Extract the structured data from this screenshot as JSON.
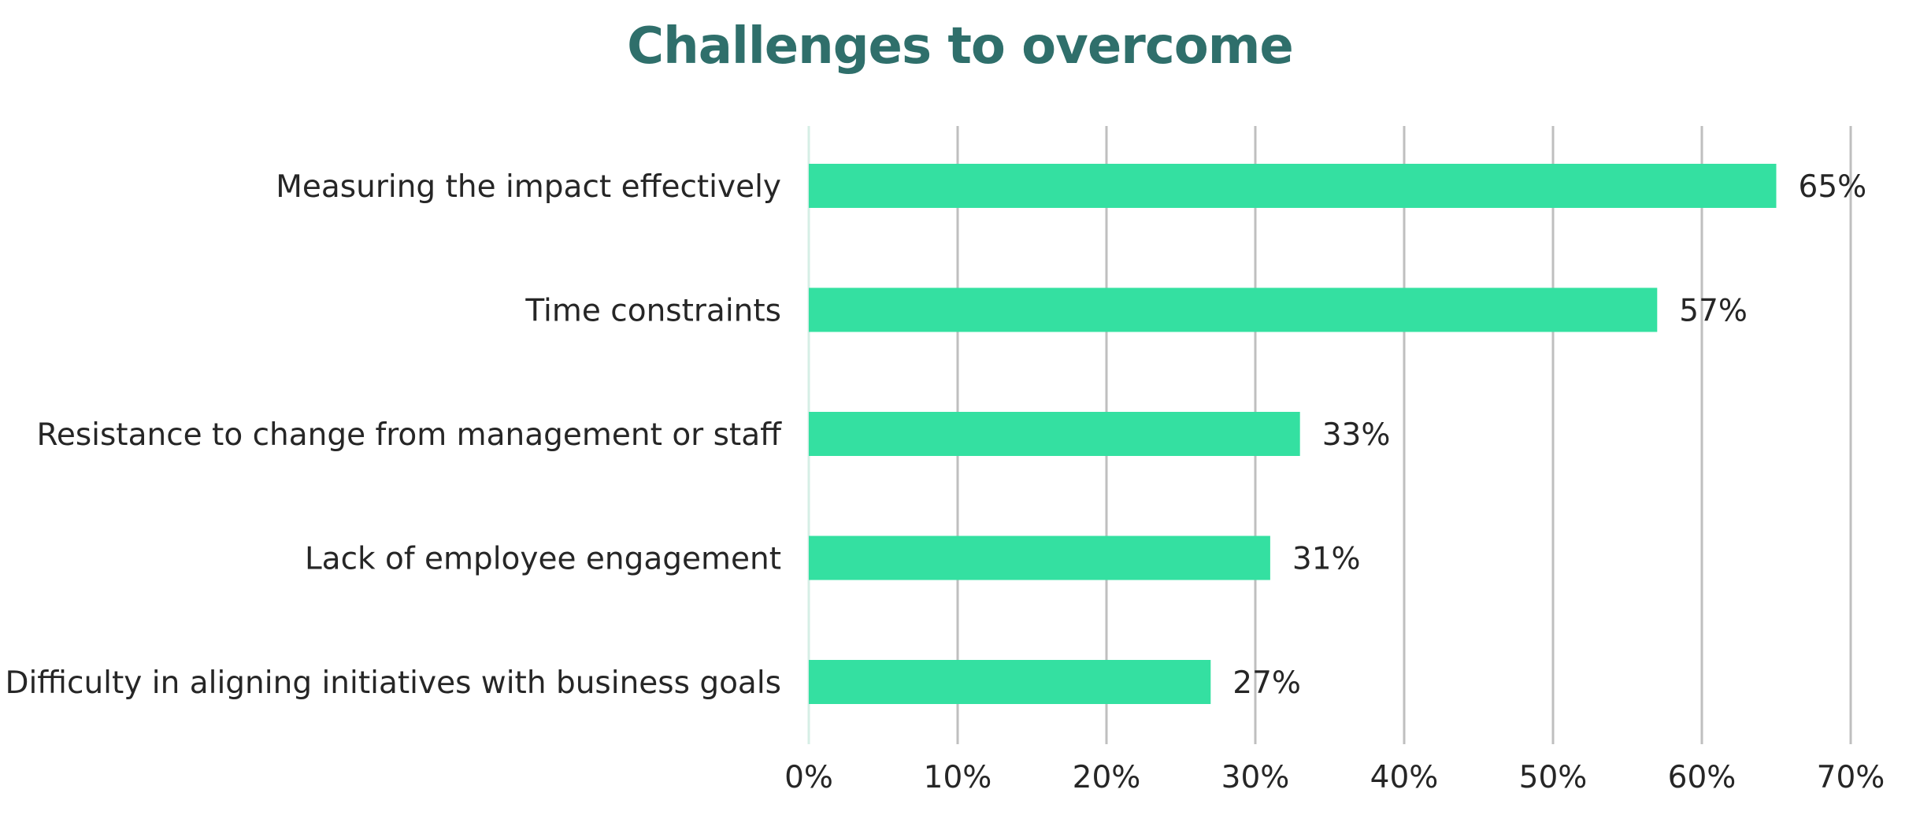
{
  "chart_data": {
    "type": "bar",
    "orientation": "horizontal",
    "title": "Challenges to overcome",
    "xlabel": "",
    "ylabel": "",
    "categories": [
      "Measuring the impact effectively",
      "Time constraints",
      "Resistance to change from management or staff",
      "Lack of employee engagement",
      "Difficulty in aligning initiatives with business goals"
    ],
    "values": [
      65,
      57,
      33,
      31,
      27
    ],
    "value_labels": [
      "65%",
      "57%",
      "33%",
      "31%",
      "27%"
    ],
    "xlim": [
      0,
      70
    ],
    "ticks": [
      0,
      10,
      20,
      30,
      40,
      50,
      60,
      70
    ],
    "tick_labels": [
      "0%",
      "10%",
      "20%",
      "30%",
      "40%",
      "50%",
      "60%",
      "70%"
    ],
    "grid": true,
    "legend": "none",
    "bar_color": "#34e0a1",
    "title_color": "#2f6f6b"
  }
}
